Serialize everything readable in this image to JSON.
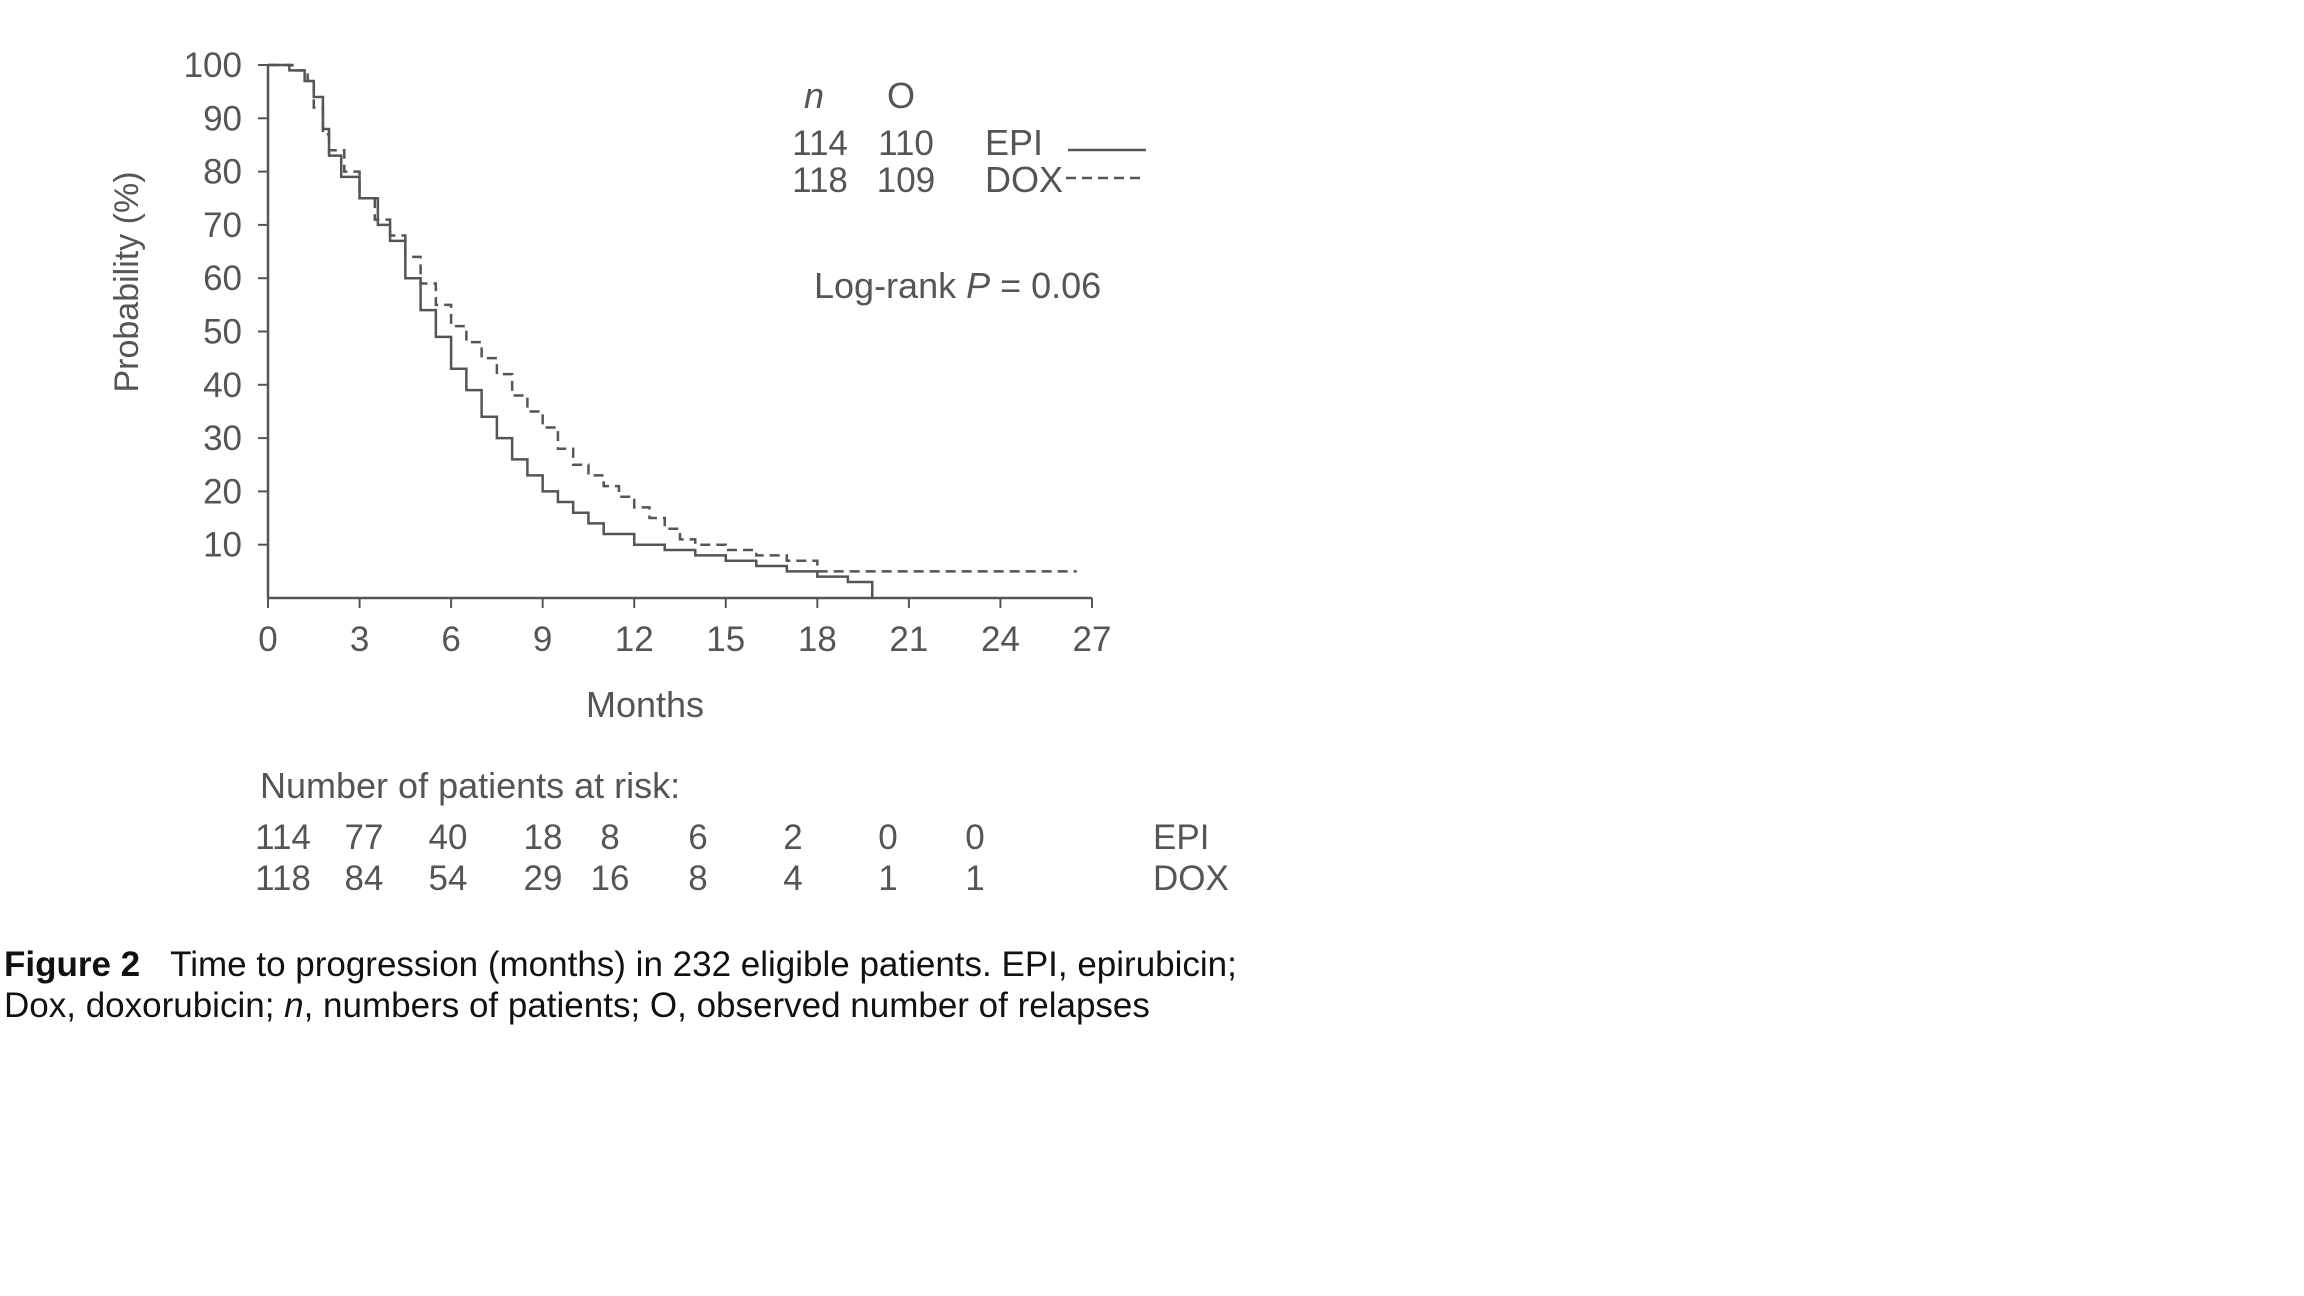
{
  "chart_data": {
    "type": "line",
    "xlabel": "Months",
    "ylabel": "Probability (%)",
    "xlim": [
      0,
      27
    ],
    "ylim": [
      0,
      100
    ],
    "x_ticks": [
      0,
      3,
      6,
      9,
      12,
      15,
      18,
      21,
      24,
      27
    ],
    "y_ticks": [
      10,
      20,
      30,
      40,
      50,
      60,
      70,
      80,
      90,
      100
    ],
    "grid": false,
    "legend": {
      "placement": "top-right",
      "header_n": "n",
      "header_o": "O",
      "entries": [
        {
          "n": "114",
          "o": "110",
          "name": "EPI",
          "style": "solid"
        },
        {
          "n": "118",
          "o": "109",
          "name": "DOX",
          "style": "dashed"
        }
      ]
    },
    "annotation": {
      "prefix": "Log-rank ",
      "italic": "P",
      "suffix": " = 0.06"
    },
    "series": [
      {
        "name": "EPI",
        "style": "solid",
        "x": [
          0,
          0.7,
          1.2,
          1.5,
          1.8,
          2.0,
          2.4,
          3.0,
          3.6,
          4.0,
          4.5,
          5.0,
          5.5,
          6.0,
          6.5,
          7.0,
          7.5,
          8.0,
          8.5,
          9.0,
          9.5,
          10.0,
          10.5,
          11.0,
          12.0,
          13.0,
          14.0,
          15.0,
          16.0,
          17.0,
          18.0,
          19.0,
          19.8,
          19.8
        ],
        "y": [
          100,
          99,
          97,
          94,
          88,
          83,
          79,
          75,
          70,
          67,
          60,
          54,
          49,
          43,
          39,
          34,
          30,
          26,
          23,
          20,
          18,
          16,
          14,
          12,
          10,
          9,
          8,
          7,
          6,
          5,
          4,
          3,
          3,
          0
        ]
      },
      {
        "name": "DOX",
        "style": "dashed",
        "x": [
          0,
          0.8,
          1.3,
          1.5,
          1.8,
          2.0,
          2.5,
          3.0,
          3.5,
          4.0,
          4.5,
          5.0,
          5.5,
          6.0,
          6.5,
          7.0,
          7.5,
          8.0,
          8.5,
          9.0,
          9.5,
          10.0,
          10.5,
          11.0,
          11.5,
          12.0,
          12.5,
          13.0,
          13.5,
          14.0,
          15.0,
          16.0,
          17.0,
          18.0,
          20.0,
          22.0,
          24.0,
          26.5
        ],
        "y": [
          100,
          99,
          97,
          92,
          87,
          84,
          80,
          75,
          71,
          68,
          64,
          59,
          55,
          51,
          48,
          45,
          42,
          38,
          35,
          32,
          28,
          25,
          23,
          21,
          19,
          17,
          15,
          13,
          11,
          10,
          9,
          8,
          7,
          5,
          5,
          5,
          5,
          5
        ]
      }
    ]
  },
  "risk_table": {
    "title": "Number of patients at risk:",
    "rows": [
      {
        "name": "EPI",
        "values": [
          "114",
          "77",
          "40",
          "18",
          "8",
          "6",
          "2",
          "0",
          "0"
        ]
      },
      {
        "name": "DOX",
        "values": [
          "118",
          "84",
          "54",
          "29",
          "16",
          "8",
          "4",
          "1",
          "1"
        ]
      }
    ]
  },
  "caption": {
    "label": "Figure 2",
    "text_1": "Time to progression (months) in 232 eligible patients. EPI, epirubicin; Dox, doxorubicin; ",
    "italic_n": "n",
    "text_2": ", numbers of patients; O, observed number of relapses"
  }
}
